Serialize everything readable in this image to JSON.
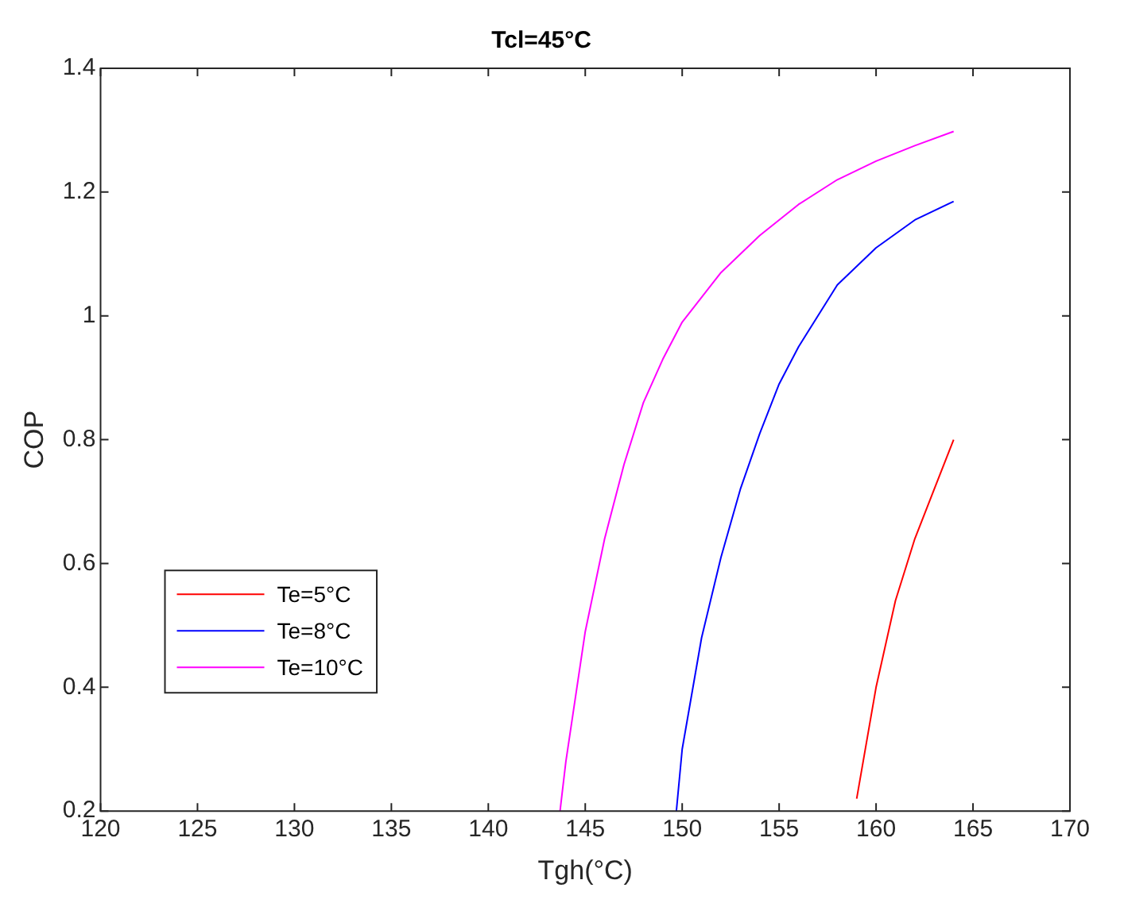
{
  "chart_data": {
    "type": "line",
    "title": "Tcl=45°C",
    "xlabel": "Tgh(°C)",
    "ylabel": "COP",
    "xlim": [
      120,
      170
    ],
    "xticks": [
      120,
      125,
      130,
      135,
      140,
      145,
      150,
      155,
      160,
      165,
      170
    ],
    "ylim": [
      0.2,
      1.4
    ],
    "yticks": [
      0.2,
      0.4,
      0.6,
      0.8,
      1,
      1.2,
      1.4
    ],
    "grid": false,
    "legend": "bottom left",
    "marker": "none",
    "line_style": "solid",
    "series": [
      {
        "name": "Te=5°C",
        "color": "#ff0000",
        "x": [
          159,
          160,
          161,
          162,
          163,
          164
        ],
        "values": [
          0.22,
          0.4,
          0.54,
          0.64,
          0.72,
          0.8
        ]
      },
      {
        "name": "Te=8°C",
        "color": "#0000ff",
        "x": [
          149.7,
          150,
          151,
          152,
          153,
          154,
          155,
          156,
          158,
          160,
          162,
          164
        ],
        "values": [
          0.2,
          0.3,
          0.48,
          0.61,
          0.72,
          0.81,
          0.89,
          0.95,
          1.05,
          1.11,
          1.155,
          1.185
        ]
      },
      {
        "name": "Te=10°C",
        "color": "#ff00ff",
        "x": [
          143.7,
          144,
          145,
          146,
          147,
          148,
          149,
          150,
          152,
          154,
          156,
          158,
          160,
          162,
          164
        ],
        "values": [
          0.2,
          0.28,
          0.49,
          0.64,
          0.76,
          0.86,
          0.93,
          0.99,
          1.07,
          1.13,
          1.18,
          1.22,
          1.25,
          1.275,
          1.298
        ]
      }
    ]
  }
}
